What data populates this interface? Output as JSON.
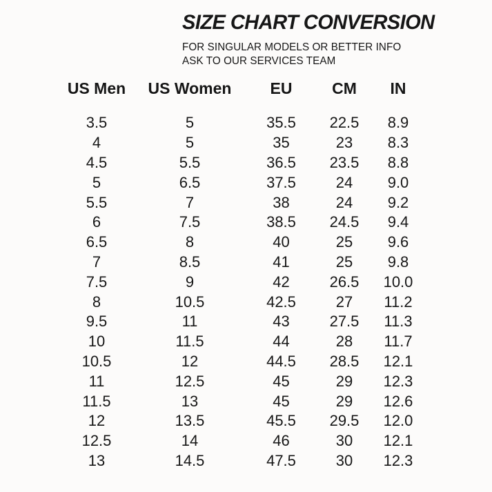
{
  "header": {
    "title": "SIZE CHART CONVERSION",
    "subtitle_line1": "FOR SINGULAR MODELS OR BETTER INFO",
    "subtitle_line2": "ASK TO OUR SERVICES TEAM"
  },
  "colors": {
    "background": "#fcfbfa",
    "text": "#161616"
  },
  "chart_data": {
    "type": "table",
    "title": "SIZE CHART CONVERSION",
    "columns": [
      "US Men",
      "US Women",
      "EU",
      "CM",
      "IN"
    ],
    "rows": [
      [
        "3.5",
        "5",
        "35.5",
        "22.5",
        "8.9"
      ],
      [
        "4",
        "5",
        "35",
        "23",
        "8.3"
      ],
      [
        "4.5",
        "5.5",
        "36.5",
        "23.5",
        "8.8"
      ],
      [
        "5",
        "6.5",
        "37.5",
        "24",
        "9.0"
      ],
      [
        "5.5",
        "7",
        "38",
        "24",
        "9.2"
      ],
      [
        "6",
        "7.5",
        "38.5",
        "24.5",
        "9.4"
      ],
      [
        "6.5",
        "8",
        "40",
        "25",
        "9.6"
      ],
      [
        "7",
        "8.5",
        "41",
        "25",
        "9.8"
      ],
      [
        "7.5",
        "9",
        "42",
        "26.5",
        "10.0"
      ],
      [
        "8",
        "10.5",
        "42.5",
        "27",
        "11.2"
      ],
      [
        "9.5",
        "11",
        "43",
        "27.5",
        "11.3"
      ],
      [
        "10",
        "11.5",
        "44",
        "28",
        "11.7"
      ],
      [
        "10.5",
        "12",
        "44.5",
        "28.5",
        "12.1"
      ],
      [
        "11",
        "12.5",
        "45",
        "29",
        "12.3"
      ],
      [
        "11.5",
        "13",
        "45",
        "29",
        "12.6"
      ],
      [
        "12",
        "13.5",
        "45.5",
        "29.5",
        "12.0"
      ],
      [
        "12.5",
        "14",
        "46",
        "30",
        "12.1"
      ],
      [
        "13",
        "14.5",
        "47.5",
        "30",
        "12.3"
      ]
    ]
  }
}
